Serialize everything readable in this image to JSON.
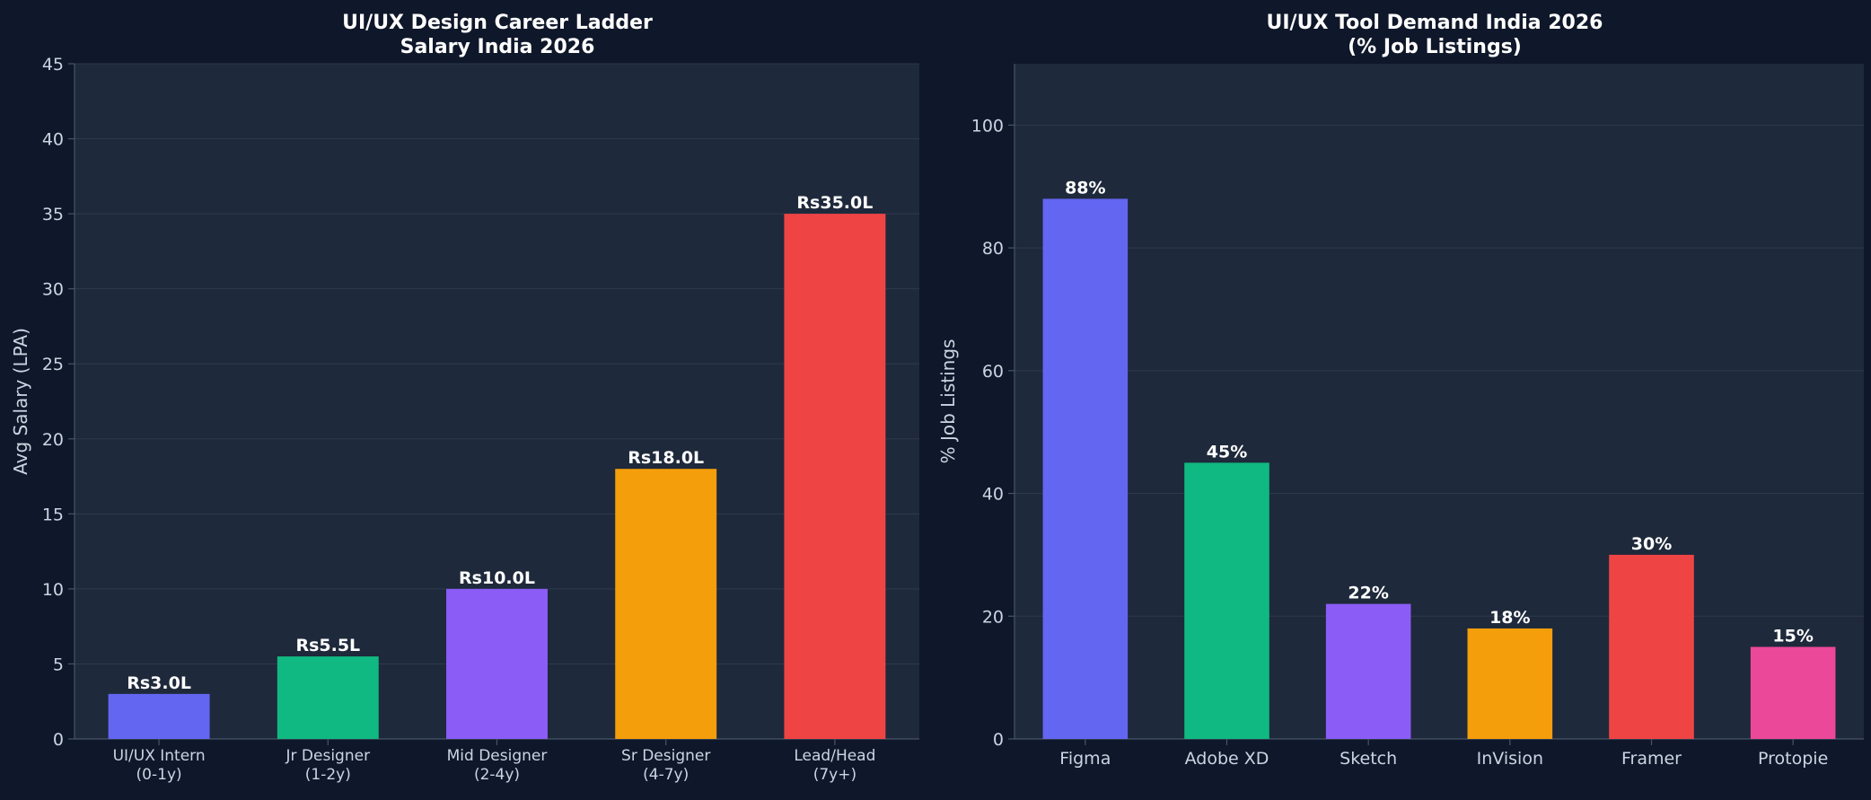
{
  "chart_data": [
    {
      "type": "bar",
      "title_lines": [
        "UI/UX Design Career Ladder",
        "Salary India 2026"
      ],
      "xlabel": "",
      "ylabel": "Avg Salary (LPA)",
      "ylim": [
        0,
        45
      ],
      "yticks": [
        0,
        5,
        10,
        15,
        20,
        25,
        30,
        35,
        40,
        45
      ],
      "grid": true,
      "categories": [
        [
          "UI/UX Intern",
          "(0-1y)"
        ],
        [
          "Jr Designer",
          "(1-2y)"
        ],
        [
          "Mid Designer",
          "(2-4y)"
        ],
        [
          "Sr Designer",
          "(4-7y)"
        ],
        [
          "Lead/Head",
          "(7y+)"
        ]
      ],
      "values": [
        3.0,
        5.5,
        10.0,
        18.0,
        35.0
      ],
      "data_labels": [
        "Rs3.0L",
        "Rs5.5L",
        "Rs10.0L",
        "Rs18.0L",
        "Rs35.0L"
      ],
      "colors": [
        "#6366f1",
        "#10b981",
        "#8b5cf6",
        "#f59e0b",
        "#ef4444"
      ]
    },
    {
      "type": "bar",
      "title_lines": [
        "UI/UX Tool Demand India 2026",
        "(% Job Listings)"
      ],
      "xlabel": "",
      "ylabel": "% Job Listings",
      "ylim": [
        0,
        110
      ],
      "yticks": [
        0,
        20,
        40,
        60,
        80,
        100
      ],
      "grid": true,
      "categories": [
        [
          "Figma"
        ],
        [
          "Adobe XD"
        ],
        [
          "Sketch"
        ],
        [
          "InVision"
        ],
        [
          "Framer"
        ],
        [
          "Protopie"
        ]
      ],
      "values": [
        88,
        45,
        22,
        18,
        30,
        15
      ],
      "data_labels": [
        "88%",
        "45%",
        "22%",
        "18%",
        "30%",
        "15%"
      ],
      "colors": [
        "#6366f1",
        "#10b981",
        "#8b5cf6",
        "#f59e0b",
        "#ef4444",
        "#ec4899"
      ]
    }
  ],
  "theme": {
    "figure_bg": "#0f172a",
    "axes_bg": "#1e293b",
    "grid_color": "#334155",
    "text_color": "#cbd5e1",
    "title_color": "#ffffff"
  }
}
